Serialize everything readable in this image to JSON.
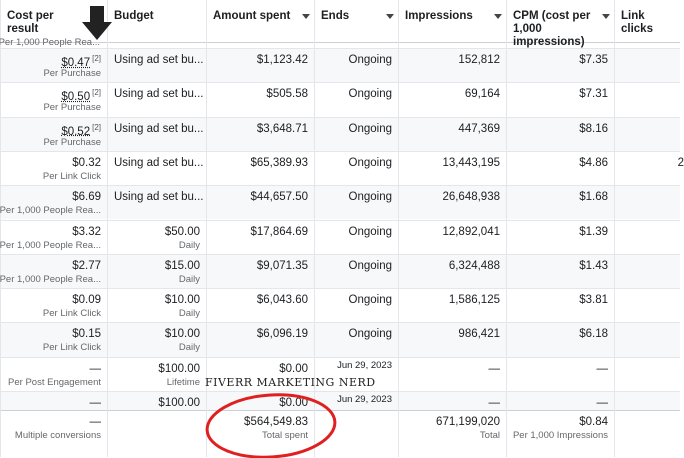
{
  "header": {
    "columns": [
      "Cost per result",
      "Budget",
      "Amount spent",
      "Ends",
      "Impressions",
      "CPM (cost per 1,000 impressions)",
      "Link clicks"
    ]
  },
  "top_partial": "Per 1,000 People Rea...",
  "table": {
    "rows": [
      [
        {
          "main": "$0.47",
          "note": "[2]",
          "sub": "Per Purchase"
        },
        {
          "main": "Using ad set bu..."
        },
        {
          "main": "$1,123.42"
        },
        {
          "main": "Ongoing"
        },
        {
          "main": "152,812"
        },
        {
          "main": "$7.35"
        },
        null
      ],
      [
        {
          "main": "$0.50",
          "note": "[2]",
          "sub": "Per Purchase"
        },
        {
          "main": "Using ad set bu..."
        },
        {
          "main": "$505.58"
        },
        {
          "main": "Ongoing"
        },
        {
          "main": "69,164"
        },
        {
          "main": "$7.31"
        },
        null
      ],
      [
        {
          "main": "$0.52",
          "note": "[2]",
          "sub": "Per Purchase"
        },
        {
          "main": "Using ad set bu..."
        },
        {
          "main": "$3,648.71"
        },
        {
          "main": "Ongoing"
        },
        {
          "main": "447,369"
        },
        {
          "main": "$8.16"
        },
        null
      ],
      [
        {
          "main": "$0.32",
          "sub": "Per Link Click"
        },
        {
          "main": "Using ad set bu..."
        },
        {
          "main": "$65,389.93"
        },
        {
          "main": "Ongoing"
        },
        {
          "main": "13,443,195"
        },
        {
          "main": "$4.86"
        },
        {
          "main": "2"
        }
      ],
      [
        {
          "main": "$6.69",
          "sub": "Per 1,000 People Rea..."
        },
        {
          "main": "Using ad set bu..."
        },
        {
          "main": "$44,657.50"
        },
        {
          "main": "Ongoing"
        },
        {
          "main": "26,648,938"
        },
        {
          "main": "$1.68"
        },
        null
      ],
      [
        {
          "main": "$3.32",
          "sub": "Per 1,000 People Rea..."
        },
        {
          "main": "$50.00",
          "sub": "Daily"
        },
        {
          "main": "$17,864.69"
        },
        {
          "main": "Ongoing"
        },
        {
          "main": "12,892,041"
        },
        {
          "main": "$1.39"
        },
        null
      ],
      [
        {
          "main": "$2.77",
          "sub": "Per 1,000 People Rea..."
        },
        {
          "main": "$15.00",
          "sub": "Daily"
        },
        {
          "main": "$9,071.35"
        },
        {
          "main": "Ongoing"
        },
        {
          "main": "6,324,488"
        },
        {
          "main": "$1.43"
        },
        null
      ],
      [
        {
          "main": "$0.09",
          "sub": "Per Link Click"
        },
        {
          "main": "$10.00",
          "sub": "Daily"
        },
        {
          "main": "$6,043.60"
        },
        {
          "main": "Ongoing"
        },
        {
          "main": "1,586,125"
        },
        {
          "main": "$3.81"
        },
        null
      ],
      [
        {
          "main": "$0.15",
          "sub": "Per Link Click"
        },
        {
          "main": "$10.00",
          "sub": "Daily"
        },
        {
          "main": "$6,096.19"
        },
        {
          "main": "Ongoing"
        },
        {
          "main": "986,421"
        },
        {
          "main": "$6.18"
        },
        null
      ],
      [
        {
          "main": "—",
          "sub": "Per Post Engagement"
        },
        {
          "main": "$100.00",
          "sub": "Lifetime"
        },
        {
          "main": "$0.00"
        },
        {
          "main": "Jun 29, 2023"
        },
        {
          "main": "—"
        },
        {
          "main": "—"
        },
        null
      ],
      [
        {
          "main": "—"
        },
        {
          "main": "$100.00"
        },
        {
          "main": "$0.00"
        },
        {
          "main": "Jun 29, 2023"
        },
        {
          "main": "—"
        },
        {
          "main": "—"
        },
        null
      ]
    ]
  },
  "totals": [
    {
      "main": "—",
      "sub": "Multiple conversions"
    },
    null,
    {
      "main": "$564,549.83",
      "sub": "Total spent"
    },
    null,
    {
      "main": "671,199,020",
      "sub": "Total"
    },
    {
      "main": "$0.84",
      "sub": "Per 1,000 Impressions"
    },
    null
  ],
  "watermark": "FIVERR MARKETING NERD"
}
